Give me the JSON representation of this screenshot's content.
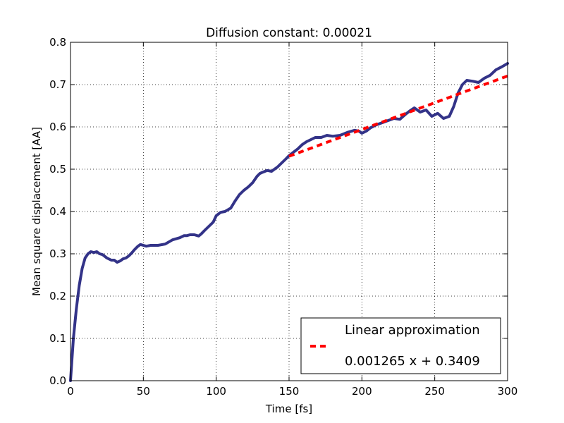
{
  "chart_data": {
    "type": "line",
    "title": "Diffusion constant: 0.00021",
    "xlabel": "Time [fs]",
    "ylabel": "Mean square displacement [AA]",
    "xlim": [
      0,
      300
    ],
    "ylim": [
      0.0,
      0.8
    ],
    "xticks": [
      0,
      50,
      100,
      150,
      200,
      250,
      300
    ],
    "xtick_labels": [
      "0",
      "50",
      "100",
      "150",
      "200",
      "250",
      "300"
    ],
    "yticks": [
      0.0,
      0.1,
      0.2,
      0.3,
      0.4,
      0.5,
      0.6,
      0.7,
      0.8
    ],
    "ytick_labels": [
      "0.0",
      "0.1",
      "0.2",
      "0.3",
      "0.4",
      "0.5",
      "0.6",
      "0.7",
      "0.8"
    ],
    "grid": true,
    "legend_position": "lower-right",
    "series": [
      {
        "color": "#333388",
        "style": "solid",
        "x": [
          0,
          2,
          4,
          6,
          8,
          10,
          12,
          14,
          16,
          18,
          20,
          22,
          25,
          28,
          30,
          32,
          34,
          36,
          38,
          40,
          42,
          44,
          46,
          48,
          50,
          52,
          55,
          60,
          65,
          70,
          75,
          78,
          80,
          82,
          85,
          88,
          90,
          92,
          95,
          98,
          100,
          103,
          106,
          110,
          113,
          116,
          119,
          122,
          125,
          128,
          130,
          132,
          135,
          138,
          140,
          142,
          145,
          148,
          150,
          153,
          156,
          159,
          162,
          165,
          168,
          172,
          176,
          180,
          185,
          190,
          195,
          198,
          200,
          203,
          206,
          210,
          214,
          218,
          222,
          226,
          230,
          233,
          236,
          240,
          244,
          248,
          252,
          256,
          260,
          263,
          266,
          269,
          272,
          276,
          280,
          284,
          288,
          292,
          296,
          300
        ],
        "y": [
          0.0,
          0.1,
          0.17,
          0.225,
          0.265,
          0.29,
          0.3,
          0.305,
          0.303,
          0.305,
          0.3,
          0.298,
          0.29,
          0.285,
          0.285,
          0.28,
          0.283,
          0.288,
          0.29,
          0.295,
          0.302,
          0.31,
          0.317,
          0.322,
          0.32,
          0.318,
          0.32,
          0.32,
          0.323,
          0.333,
          0.338,
          0.343,
          0.343,
          0.345,
          0.345,
          0.342,
          0.348,
          0.355,
          0.365,
          0.375,
          0.39,
          0.398,
          0.4,
          0.408,
          0.425,
          0.44,
          0.45,
          0.458,
          0.468,
          0.483,
          0.49,
          0.493,
          0.497,
          0.495,
          0.5,
          0.505,
          0.515,
          0.525,
          0.532,
          0.54,
          0.548,
          0.558,
          0.565,
          0.57,
          0.575,
          0.575,
          0.58,
          0.578,
          0.58,
          0.587,
          0.592,
          0.59,
          0.585,
          0.59,
          0.598,
          0.605,
          0.61,
          0.615,
          0.62,
          0.618,
          0.63,
          0.638,
          0.645,
          0.635,
          0.64,
          0.625,
          0.632,
          0.62,
          0.625,
          0.648,
          0.68,
          0.7,
          0.71,
          0.708,
          0.705,
          0.715,
          0.722,
          0.735,
          0.742,
          0.75
        ]
      },
      {
        "name": "Linear approximation\n\n0.001265 x + 0.3409",
        "color": "#ff0000",
        "style": "dashed",
        "x": [
          150,
          300
        ],
        "y": [
          0.5307,
          0.7204
        ]
      }
    ],
    "legend": {
      "line1": "Linear approximation",
      "line2": "0.001265 x + 0.3409"
    }
  }
}
